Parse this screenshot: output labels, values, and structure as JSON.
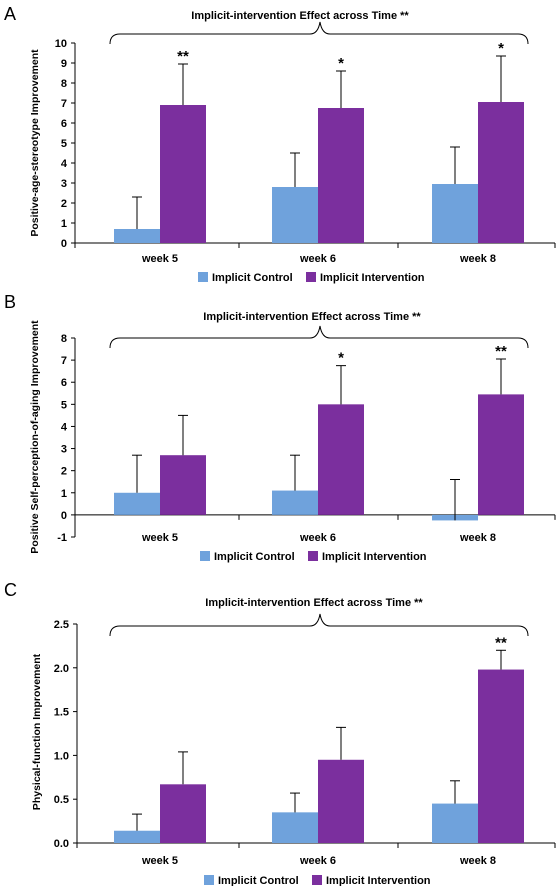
{
  "colors": {
    "control": "#6fa2dc",
    "intervention": "#7b2f9e",
    "axis": "#000000"
  },
  "chart_data": [
    {
      "type": "bar",
      "panel": "A",
      "title": "Implicit-intervention Effect across Time **",
      "ylabel": "Positive-age-stereotype Improvement",
      "xlabel": "",
      "ylim": [
        0,
        10
      ],
      "yticks": [
        0,
        1,
        2,
        3,
        4,
        5,
        6,
        7,
        8,
        9,
        10
      ],
      "ytick_labels": [
        "0",
        "1",
        "2",
        "3",
        "4",
        "5",
        "6",
        "7",
        "8",
        "9",
        "10"
      ],
      "categories": [
        "week 5",
        "week 6",
        "week 8"
      ],
      "series": [
        {
          "name": "Implicit Control",
          "values": [
            0.7,
            2.8,
            2.95
          ],
          "errors": [
            1.6,
            1.7,
            1.85
          ]
        },
        {
          "name": "Implicit Intervention",
          "values": [
            6.9,
            6.75,
            7.05
          ],
          "errors": [
            2.05,
            1.85,
            2.3
          ]
        }
      ],
      "significance": [
        "**",
        "*",
        "*"
      ]
    },
    {
      "type": "bar",
      "panel": "B",
      "title": "Implicit-intervention Effect across Time **",
      "ylabel": "Positive Self-perception-of-aging Improvement",
      "xlabel": "",
      "ylim": [
        -1,
        8
      ],
      "yticks": [
        -1,
        0,
        1,
        2,
        3,
        4,
        5,
        6,
        7,
        8
      ],
      "ytick_labels": [
        "-1",
        "0",
        "1",
        "2",
        "3",
        "4",
        "5",
        "6",
        "7",
        "8"
      ],
      "categories": [
        "week 5",
        "week 6",
        "week 8"
      ],
      "series": [
        {
          "name": "Implicit Control",
          "values": [
            1.0,
            1.1,
            -0.25
          ],
          "errors": [
            1.7,
            1.6,
            1.85
          ]
        },
        {
          "name": "Implicit Intervention",
          "values": [
            2.7,
            5.0,
            5.45
          ],
          "errors": [
            1.8,
            1.75,
            1.6
          ]
        }
      ],
      "significance": [
        "",
        "*",
        "**"
      ]
    },
    {
      "type": "bar",
      "panel": "C",
      "title": "Implicit-intervention Effect across Time **",
      "ylabel": "Physical-function Improvement",
      "xlabel": "",
      "ylim": [
        0,
        2.5
      ],
      "yticks": [
        0,
        0.5,
        1.0,
        1.5,
        2.0,
        2.5
      ],
      "ytick_labels": [
        "0.0",
        "0.5",
        "1.0",
        "1.5",
        "2.0",
        "2.5"
      ],
      "categories": [
        "week 5",
        "week 6",
        "week 8"
      ],
      "series": [
        {
          "name": "Implicit Control",
          "values": [
            0.14,
            0.35,
            0.45
          ],
          "errors": [
            0.19,
            0.22,
            0.26
          ]
        },
        {
          "name": "Implicit Intervention",
          "values": [
            0.67,
            0.95,
            1.98
          ],
          "errors": [
            0.37,
            0.37,
            0.22
          ]
        }
      ],
      "significance": [
        "",
        "",
        "**"
      ]
    }
  ]
}
